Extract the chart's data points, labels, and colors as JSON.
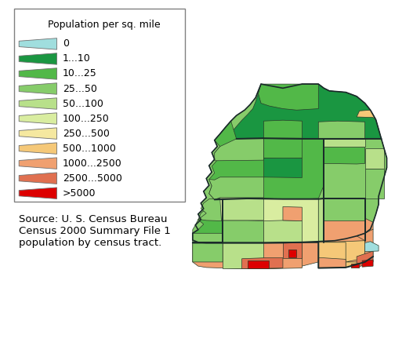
{
  "legend_title": "Population per sq. mile",
  "legend_items": [
    {
      "label": "0",
      "color": "#a0dede"
    },
    {
      "label": "1...10",
      "color": "#1a9641"
    },
    {
      "label": "10...25",
      "color": "#52b848"
    },
    {
      "label": "25...50",
      "color": "#86cc6a"
    },
    {
      "label": "50...100",
      "color": "#b8e08a"
    },
    {
      "label": "100...250",
      "color": "#d9eda0"
    },
    {
      "label": "250...500",
      "color": "#f5e8a0"
    },
    {
      "label": "500...1000",
      "color": "#f5c878"
    },
    {
      "label": "1000...2500",
      "color": "#f0a070"
    },
    {
      "label": "2500...5000",
      "color": "#e07050"
    },
    {
      "label": ">5000",
      "color": "#dd0000"
    }
  ],
  "source_text": "Source: U. S. Census Bureau\nCensus 2000 Summary File 1\npopulation by census tract.",
  "bg_color": "#ffffff",
  "legend_title_fontsize": 9.0,
  "legend_item_fontsize": 9.0,
  "source_fontsize": 9.5,
  "edge_color": "#2a3a2a",
  "county_edge_color": "#1a2a2a",
  "county_lw": 1.4,
  "tract_lw": 0.5
}
